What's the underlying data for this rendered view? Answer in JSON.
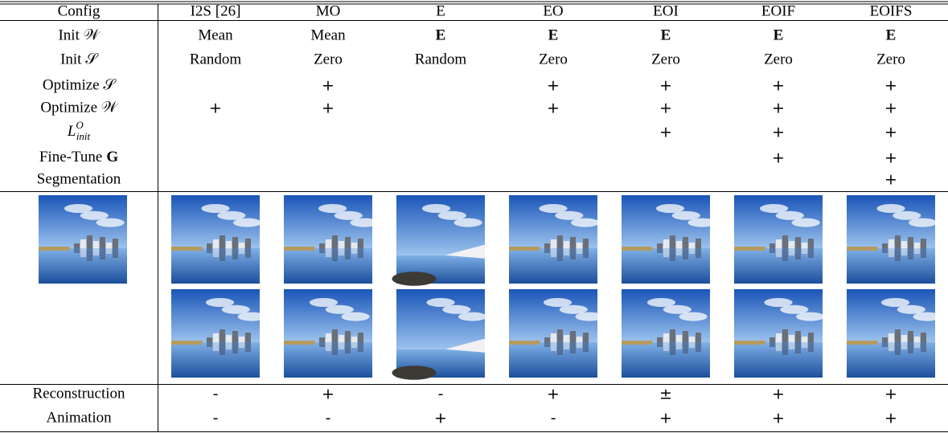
{
  "table": {
    "header": [
      "Config",
      "I2S [26]",
      "MO",
      "E",
      "EO",
      "EOI",
      "EOIF",
      "EOIFS"
    ],
    "rows": [
      {
        "label": "Init 𝒲",
        "cells": [
          "Mean",
          "Mean",
          {
            "text": "E",
            "style": "bold"
          },
          {
            "text": "E",
            "style": "bold"
          },
          {
            "text": "E",
            "style": "bold"
          },
          {
            "text": "E",
            "style": "bold"
          },
          {
            "text": "E",
            "style": "bold"
          }
        ]
      },
      {
        "label": "Init 𝒮",
        "cells": [
          "Random",
          "Zero",
          "Random",
          "Zero",
          "Zero",
          "Zero",
          "Zero"
        ]
      },
      {
        "label": "Optimize 𝒮",
        "cells": [
          null,
          "+",
          null,
          "+",
          "+",
          "+",
          "+"
        ]
      },
      {
        "label": "Optimize 𝒲",
        "cells": [
          "+",
          "+",
          null,
          "+",
          "+",
          "+",
          "+"
        ]
      },
      {
        "label": {
          "base": "L",
          "sup": "O",
          "sub": "init"
        },
        "cells": [
          null,
          null,
          null,
          null,
          "+",
          "+",
          "+"
        ]
      },
      {
        "label": {
          "text": "Fine-Tune",
          "bold": "G"
        },
        "cells": [
          null,
          null,
          null,
          null,
          null,
          "+",
          "+"
        ]
      },
      {
        "label": "Segmentation",
        "cells": [
          null,
          null,
          null,
          null,
          null,
          null,
          "+"
        ]
      }
    ],
    "results": [
      {
        "label": "Reconstruction",
        "cells": [
          "-",
          "+",
          "-",
          "+",
          "±",
          "+",
          "+"
        ]
      },
      {
        "label": "Animation",
        "cells": [
          "-",
          "-",
          "+",
          "-",
          "+",
          "+",
          "+"
        ]
      }
    ]
  }
}
